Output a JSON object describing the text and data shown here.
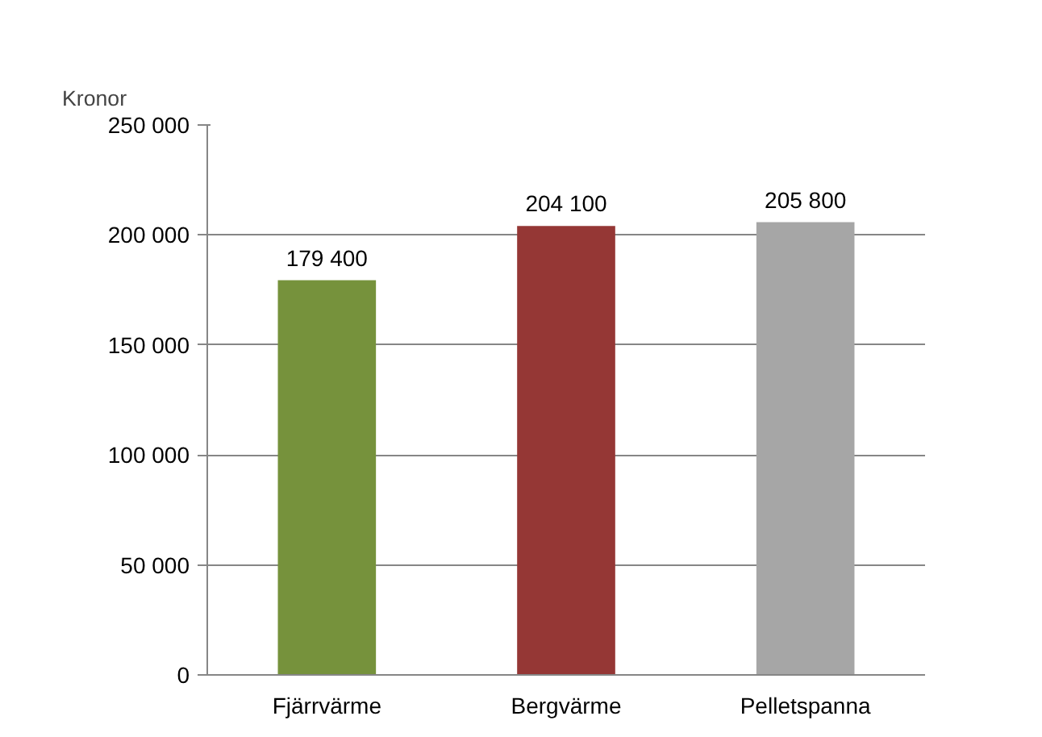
{
  "chart_data": {
    "type": "bar",
    "ylabel": "Kronor",
    "categories": [
      "Fjärrvärme",
      "Bergvärme",
      "Pelletspanna"
    ],
    "values": [
      179400,
      204100,
      205800
    ],
    "colors": [
      "#76923c",
      "#953735",
      "#a6a6a6"
    ],
    "value_labels": [
      "179 400",
      "204 100",
      "205 800"
    ],
    "ylim": [
      0,
      250000
    ],
    "yticks": [
      {
        "value": 0,
        "label": "0"
      },
      {
        "value": 50000,
        "label": "50 000"
      },
      {
        "value": 100000,
        "label": "100 000"
      },
      {
        "value": 150000,
        "label": "150 000"
      },
      {
        "value": 200000,
        "label": "200 000"
      },
      {
        "value": 250000,
        "label": "250 000"
      }
    ],
    "grid": "y"
  }
}
